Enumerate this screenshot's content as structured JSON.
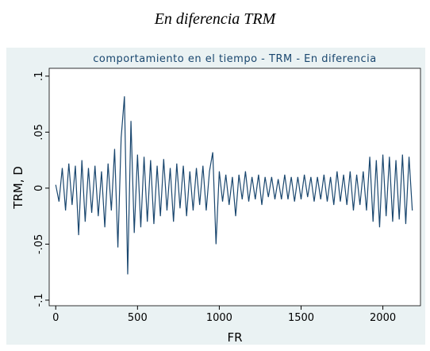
{
  "chart_data": {
    "type": "line",
    "page_title": "En diferencia TRM",
    "title": "comportamiento en el tiempo - TRM - En diferencia",
    "x_label": "FR",
    "y_label": "TRM, D",
    "x": [
      0,
      20,
      40,
      60,
      80,
      100,
      120,
      140,
      160,
      180,
      200,
      220,
      240,
      260,
      280,
      300,
      320,
      340,
      360,
      380,
      400,
      420,
      440,
      460,
      480,
      500,
      520,
      540,
      560,
      580,
      600,
      620,
      640,
      660,
      680,
      700,
      720,
      740,
      760,
      780,
      800,
      820,
      840,
      860,
      880,
      900,
      920,
      940,
      960,
      980,
      1000,
      1020,
      1040,
      1060,
      1080,
      1100,
      1120,
      1140,
      1160,
      1180,
      1200,
      1220,
      1240,
      1260,
      1280,
      1300,
      1320,
      1340,
      1360,
      1380,
      1400,
      1420,
      1440,
      1460,
      1480,
      1500,
      1520,
      1540,
      1560,
      1580,
      1600,
      1620,
      1640,
      1660,
      1680,
      1700,
      1720,
      1740,
      1760,
      1780,
      1800,
      1820,
      1840,
      1860,
      1880,
      1900,
      1920,
      1940,
      1960,
      1980,
      2000,
      2020,
      2040,
      2060,
      2080,
      2100,
      2120,
      2140,
      2160,
      2180
    ],
    "series": [
      {
        "name": "TRM, D",
        "color": "#1a476f",
        "values": [
          0.003,
          -0.012,
          0.018,
          -0.02,
          0.022,
          -0.015,
          0.02,
          -0.042,
          0.025,
          -0.03,
          0.018,
          -0.022,
          0.02,
          -0.025,
          0.015,
          -0.035,
          0.022,
          -0.02,
          0.035,
          -0.053,
          0.045,
          0.082,
          -0.077,
          0.06,
          -0.04,
          0.03,
          -0.035,
          0.028,
          -0.03,
          0.025,
          -0.032,
          0.02,
          -0.025,
          0.026,
          -0.02,
          0.018,
          -0.03,
          0.022,
          -0.018,
          0.02,
          -0.025,
          0.015,
          -0.02,
          0.018,
          -0.015,
          0.02,
          -0.02,
          0.015,
          0.032,
          -0.05,
          0.015,
          -0.012,
          0.012,
          -0.015,
          0.01,
          -0.025,
          0.012,
          -0.01,
          0.015,
          -0.012,
          0.01,
          -0.01,
          0.012,
          -0.015,
          0.01,
          -0.008,
          0.01,
          -0.01,
          0.008,
          -0.01,
          0.012,
          -0.01,
          0.01,
          -0.012,
          0.01,
          -0.01,
          0.012,
          -0.008,
          0.01,
          -0.012,
          0.01,
          -0.01,
          0.012,
          -0.012,
          0.01,
          -0.015,
          0.015,
          -0.012,
          0.012,
          -0.015,
          0.015,
          -0.02,
          0.012,
          -0.015,
          0.015,
          -0.02,
          0.028,
          -0.03,
          0.025,
          -0.035,
          0.03,
          -0.025,
          0.028,
          -0.03,
          0.025,
          -0.028,
          0.03,
          -0.032,
          0.028,
          -0.02
        ]
      }
    ],
    "xlim": [
      -40,
      2230
    ],
    "xticks": [
      0,
      500,
      1000,
      1500,
      2000
    ],
    "ylim": [
      -0.105,
      0.107
    ],
    "yticks": [
      {
        "value": -0.1,
        "label": "-.1"
      },
      {
        "value": -0.05,
        "label": "-.05"
      },
      0,
      {
        "value": 0.05,
        "label": ".05"
      },
      {
        "value": 0.1,
        "label": ".1"
      }
    ]
  }
}
